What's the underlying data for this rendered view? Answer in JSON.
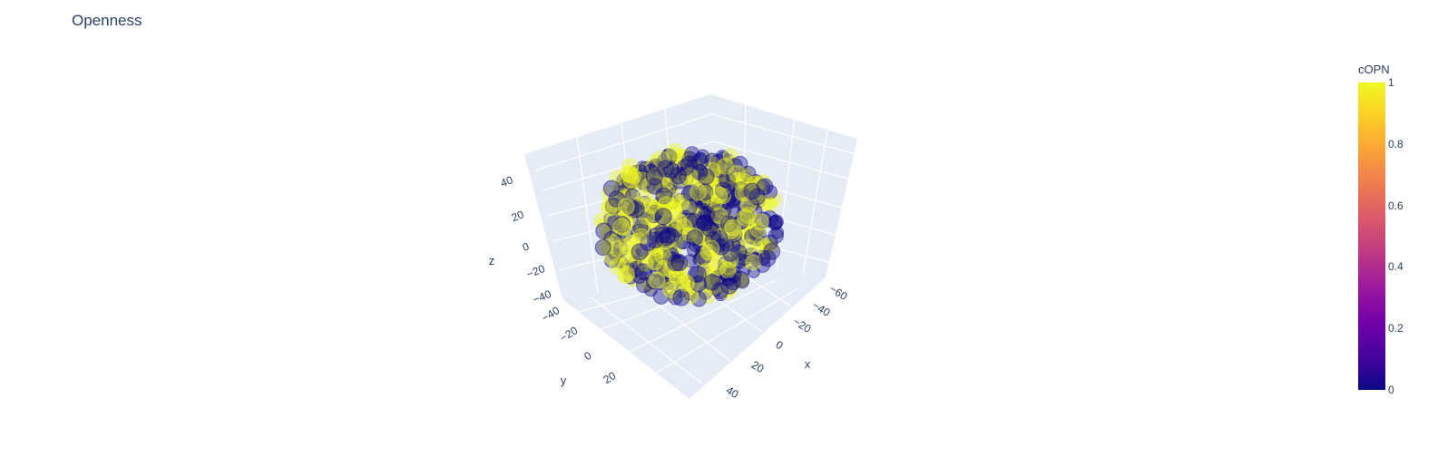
{
  "chart_data": {
    "type": "scatter3d",
    "title": "Openness",
    "x_axis": {
      "label": "x",
      "ticks": [
        "−60",
        "−40",
        "−20",
        "0",
        "20",
        "40"
      ]
    },
    "y_axis": {
      "label": "y",
      "ticks": [
        "−40",
        "−20",
        "0",
        "20"
      ]
    },
    "z_axis": {
      "label": "z",
      "ticks": [
        "−40",
        "−20",
        "0",
        "20",
        "40"
      ]
    },
    "colorbar": {
      "title": "cOPN",
      "ticks": [
        "0",
        "0.2",
        "0.4",
        "0.6",
        "0.8",
        "1"
      ],
      "colorscale": "plasma"
    },
    "marker": {
      "opacity": 0.4
    },
    "colors": {
      "low": "#0d0887",
      "high": "#f0f921",
      "scene_bg": "#e5ecf6",
      "grid": "#ffffff"
    }
  }
}
